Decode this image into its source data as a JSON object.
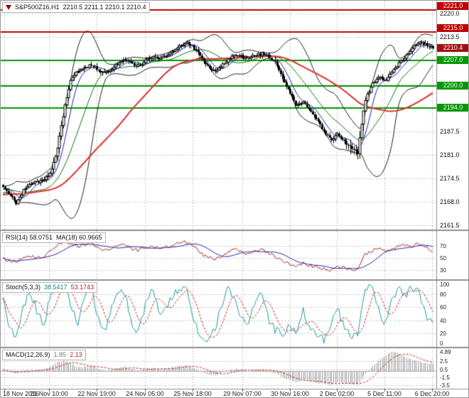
{
  "window": {
    "title_symbol": "S&P500Z16,H1",
    "ohlc": "2210.5 2211.1 2210.1 2210.4"
  },
  "colors": {
    "background": "#FFFFFF",
    "grid": "#C6C6C6",
    "candle": "#000000",
    "candle_bull_fill": "#FFFFFF",
    "bands": "#222222",
    "ma_fast": "#2020BB",
    "ma_mid": "#0A7A0A",
    "ma_slow": "#E03030",
    "resistance_line": "#C00000",
    "support_line": "#009900",
    "current_price": "#A01010",
    "rsi": "#B22222",
    "rsi_ma": "#2424AA",
    "stoch_k": "#1F9E9E",
    "stoch_d": "#CC2222",
    "macd_hist": "#9A9A9A",
    "macd_signal": "#CC2222"
  },
  "main_panel": {
    "y_axis_labels": [
      "2220.0",
      "2213.5",
      "2187.5",
      "2181.0",
      "2174.5",
      "2168.0",
      "2161.5"
    ],
    "price_lines": [
      {
        "label": "2221.0",
        "value": 2221.0,
        "type": "resistance",
        "color": "#C00000"
      },
      {
        "label": "2215.0",
        "value": 2215.0,
        "type": "resistance",
        "color": "#C00000"
      },
      {
        "label": "2210.4",
        "value": 2210.4,
        "type": "current",
        "color": "#A01010"
      },
      {
        "label": "2207.0",
        "value": 2207.0,
        "type": "support",
        "color": "#009900"
      },
      {
        "label": "2200.0",
        "value": 2200.0,
        "type": "support",
        "color": "#009900"
      },
      {
        "label": "2194.0",
        "value": 2194.0,
        "type": "support",
        "color": "#009900"
      }
    ]
  },
  "indicators": {
    "rsi": {
      "label": "RSI(14) 58.0751",
      "ma_label": "MA(18) 60.9665",
      "levels": [
        "70",
        "50",
        "30"
      ]
    },
    "stoch": {
      "label": "Stoch(5,3,3)",
      "value_k": "38.5417",
      "value_d": "53.1743",
      "levels": [
        "100",
        "80",
        "60",
        "40",
        "20",
        "0"
      ]
    },
    "macd": {
      "label": "MACD(12,26,9)",
      "value_main": "1.85",
      "value_signal": "2.13",
      "levels": [
        "4.89",
        "2.5",
        "0.5",
        "-1.5",
        "-3.5"
      ]
    }
  },
  "time_axis": {
    "labels": [
      "18 Nov 2016",
      "21 Nov 10:00",
      "22 Nov 19:00",
      "24 Nov 05:00",
      "25 Nov 18:00",
      "29 Nov 07:00",
      "30 Nov 16:00",
      "2 Dec 02:00",
      "5 Dec 11:00",
      "6 Dec 20:00"
    ],
    "positions": [
      0.008,
      0.111,
      0.22,
      0.331,
      0.44,
      0.555,
      0.664,
      0.771,
      0.881,
      0.99
    ]
  },
  "chart_data": [
    {
      "type": "candlestick",
      "symbol": "S&P500Z16",
      "timeframe": "H1",
      "last": {
        "open": 2210.5,
        "high": 2211.1,
        "low": 2210.1,
        "close": 2210.4
      },
      "ylim": [
        2160.3,
        2223.6
      ],
      "y_ticks": [
        2220.0,
        2213.5,
        2207.0,
        2200.5,
        2194.0,
        2187.5,
        2181.0,
        2174.5,
        2168.0,
        2161.5
      ],
      "x_labels": [
        "18 Nov 2016",
        "21 Nov 10:00",
        "22 Nov 19:00",
        "24 Nov 05:00",
        "25 Nov 18:00",
        "29 Nov 07:00",
        "30 Nov 16:00",
        "2 Dec 02:00",
        "5 Dec 11:00",
        "6 Dec 20:00"
      ],
      "resistance": [
        2221.0,
        2215.0
      ],
      "support": [
        2207.0,
        2200.0,
        2194.0
      ],
      "overlays": [
        "Bollinger Bands",
        "fast MA (blue)",
        "medium MA (green)",
        "slow MA (red)"
      ],
      "close_path": [
        2172,
        2170,
        2167.5,
        2171,
        2173,
        2173.5,
        2174,
        2176,
        2183,
        2194,
        2202,
        2204,
        2205,
        2206,
        2204.5,
        2203.5,
        2205,
        2206.5,
        2207.5,
        2206,
        2205.5,
        2207,
        2208,
        2207.5,
        2208.5,
        2209.5,
        2211,
        2212,
        2210.5,
        2208,
        2205.5,
        2204,
        2205.5,
        2207.5,
        2208.5,
        2208,
        2207.5,
        2208.5,
        2209,
        2208,
        2206.5,
        2202,
        2198,
        2194.5,
        2196,
        2193,
        2190.5,
        2187.5,
        2185,
        2186.5,
        2184.5,
        2183,
        2181.5,
        2196,
        2200,
        2202.5,
        2201.5,
        2204,
        2206,
        2208,
        2210.5,
        2212,
        2211.5,
        2210.4
      ]
    },
    {
      "type": "line",
      "title": "RSI(14)",
      "current": 58.0751,
      "ma_title": "MA(18)",
      "ma_current": 60.9665,
      "ylim": [
        15,
        95
      ],
      "levels": [
        70,
        50,
        30
      ],
      "values": [
        48,
        45,
        42,
        50,
        53,
        52,
        53,
        62,
        72,
        78,
        74,
        70,
        72,
        73,
        66,
        62,
        66,
        70,
        72,
        65,
        63,
        67,
        70,
        66,
        69,
        72,
        75,
        76,
        68,
        58,
        52,
        48,
        53,
        60,
        64,
        61,
        58,
        61,
        63,
        57,
        52,
        44,
        40,
        36,
        42,
        38,
        35,
        32,
        30,
        36,
        33,
        31,
        30,
        55,
        62,
        66,
        62,
        66,
        70,
        72,
        70,
        74,
        68,
        58.1
      ]
    },
    {
      "type": "line",
      "title": "Stoch(5,3,3)",
      "k_current": 38.5417,
      "d_current": 53.1743,
      "ylim": [
        0,
        100
      ],
      "levels": [
        80,
        60,
        40,
        20
      ],
      "k_values": [
        70,
        25,
        15,
        60,
        85,
        55,
        30,
        80,
        95,
        90,
        60,
        35,
        75,
        90,
        40,
        20,
        65,
        88,
        75,
        30,
        25,
        70,
        85,
        45,
        60,
        80,
        92,
        85,
        40,
        15,
        10,
        25,
        60,
        85,
        70,
        40,
        35,
        65,
        80,
        40,
        25,
        15,
        35,
        20,
        55,
        30,
        15,
        10,
        25,
        60,
        30,
        15,
        20,
        85,
        90,
        60,
        35,
        70,
        85,
        75,
        90,
        80,
        45,
        38.5
      ]
    },
    {
      "type": "bar",
      "title": "MACD(12,26,9)",
      "macd_current": 1.85,
      "signal_current": 2.13,
      "ylim": [
        -4.3,
        5.7
      ],
      "grid": [
        2.5,
        0.5,
        -1.5,
        -3.5
      ],
      "histogram": [
        0.3,
        -0.2,
        -0.5,
        0.2,
        0.5,
        0.3,
        0.4,
        1.2,
        2.2,
        2.6,
        1.8,
        1.0,
        1.2,
        1.4,
        0.6,
        0.2,
        0.5,
        0.9,
        1.1,
        0.4,
        0.2,
        0.6,
        0.9,
        0.5,
        0.7,
        1.0,
        1.4,
        1.5,
        0.8,
        -0.2,
        -0.8,
        -1.0,
        -0.4,
        0.3,
        0.6,
        0.3,
        0.1,
        0.4,
        0.5,
        0.0,
        -0.5,
        -1.5,
        -2.2,
        -2.8,
        -2.0,
        -2.4,
        -2.8,
        -3.1,
        -3.3,
        -2.6,
        -2.9,
        -3.1,
        -3.3,
        -1.0,
        1.0,
        2.5,
        3.8,
        4.89,
        4.3,
        3.5,
        2.8,
        2.3,
        2.0,
        1.85
      ]
    }
  ]
}
